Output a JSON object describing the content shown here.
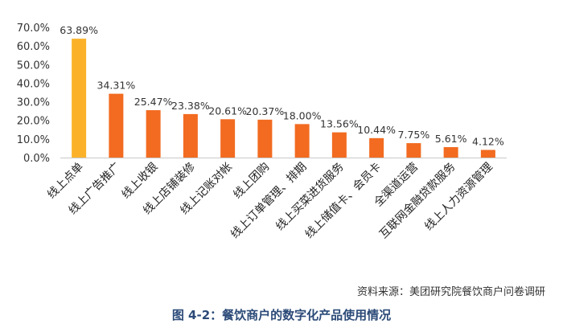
{
  "chart_data": {
    "type": "bar",
    "categories": [
      "线上点单",
      "线上广告推广",
      "线上收银",
      "线上店铺装修",
      "线上记账对帐",
      "线上团购",
      "线上订单管理、排期",
      "线上买菜进货服务",
      "线上储值卡、会员卡",
      "全渠道运营",
      "互联网金融贷款服务",
      "线上人力资源管理"
    ],
    "values": [
      63.89,
      34.31,
      25.47,
      23.38,
      20.61,
      20.37,
      18.0,
      13.56,
      10.44,
      7.75,
      5.61,
      4.12
    ],
    "value_labels": [
      "63.89%",
      "34.31%",
      "25.47%",
      "23.38%",
      "20.61%",
      "20.37%",
      "18.00%",
      "13.56%",
      "10.44%",
      "7.75%",
      "5.61%",
      "4.12%"
    ],
    "y_ticks": [
      "0.0%",
      "10.0%",
      "20.0%",
      "30.0%",
      "40.0%",
      "50.0%",
      "60.0%",
      "70.0%"
    ],
    "ylim": [
      0,
      70
    ],
    "grid": false,
    "colors": {
      "highlight": "#fbb22a",
      "bar": "#f26b21",
      "axis": "#c8c8c8"
    }
  },
  "source_text": "资料来源：美团研究院餐饮商户问卷调研",
  "caption": "图 4-2：餐饮商户的数字化产品使用情况"
}
